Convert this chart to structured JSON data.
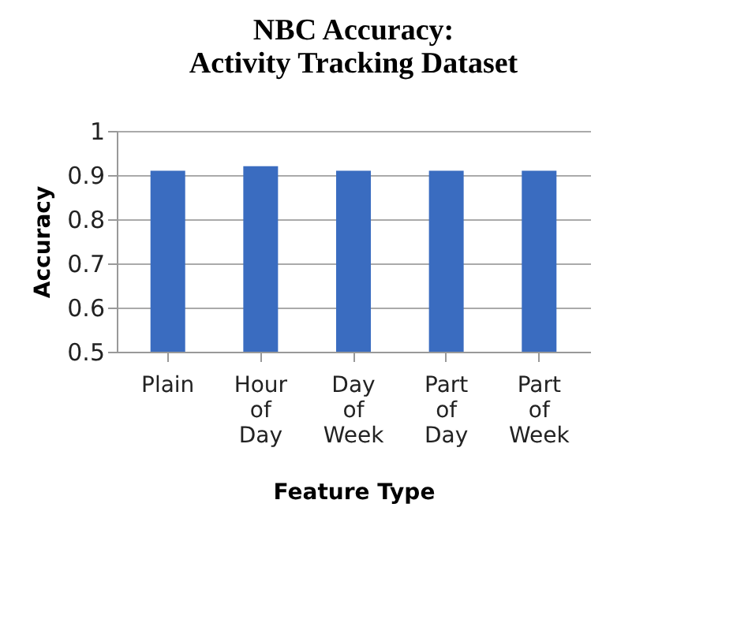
{
  "chart_data": {
    "type": "bar",
    "title": "NBC Accuracy: Activity Tracking Dataset",
    "xlabel": "Feature Type",
    "ylabel": "Accuracy",
    "categories": [
      "Plain",
      "Hour of Day",
      "Day of Week",
      "Part of Day",
      "Part of Week"
    ],
    "values": [
      0.91,
      0.92,
      0.91,
      0.91,
      0.91
    ],
    "color": "#3a6cc0",
    "ylim": [
      0.5,
      1
    ],
    "yticks": [
      0.5,
      0.6,
      0.7,
      0.8,
      0.9,
      {
        "value": 1,
        "label": "1"
      }
    ],
    "grid": "y"
  }
}
